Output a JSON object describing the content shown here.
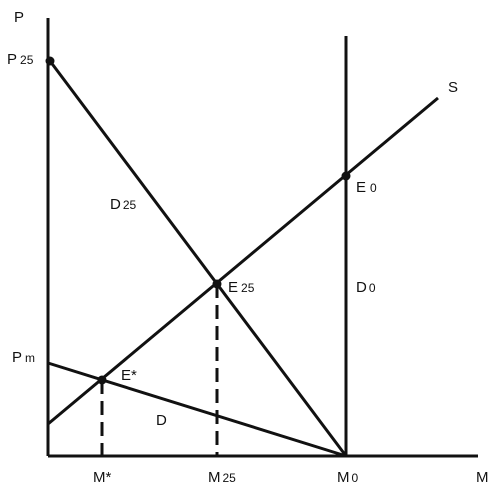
{
  "axes": {
    "y_label": "P",
    "x_label": "M"
  },
  "price_labels": {
    "p25": {
      "main": "P",
      "sub": "25"
    },
    "pm": {
      "main": "P",
      "sub": "m"
    }
  },
  "quantity_labels": {
    "mstar": {
      "main": "M*",
      "sub": ""
    },
    "m25": {
      "main": "M",
      "sub": "25"
    },
    "m0": {
      "main": "M",
      "sub": "0"
    }
  },
  "curve_labels": {
    "s": {
      "main": "S",
      "sub": ""
    },
    "d25": {
      "main": "D",
      "sub": "25"
    },
    "d0": {
      "main": "D",
      "sub": "0"
    },
    "d": {
      "main": "D",
      "sub": ""
    }
  },
  "point_labels": {
    "e0": {
      "main": "E",
      "sub": "0"
    },
    "e25": {
      "main": "E",
      "sub": "25"
    },
    "estar": {
      "main": "E*",
      "sub": ""
    }
  },
  "colors": {
    "ink": "#111111"
  }
}
